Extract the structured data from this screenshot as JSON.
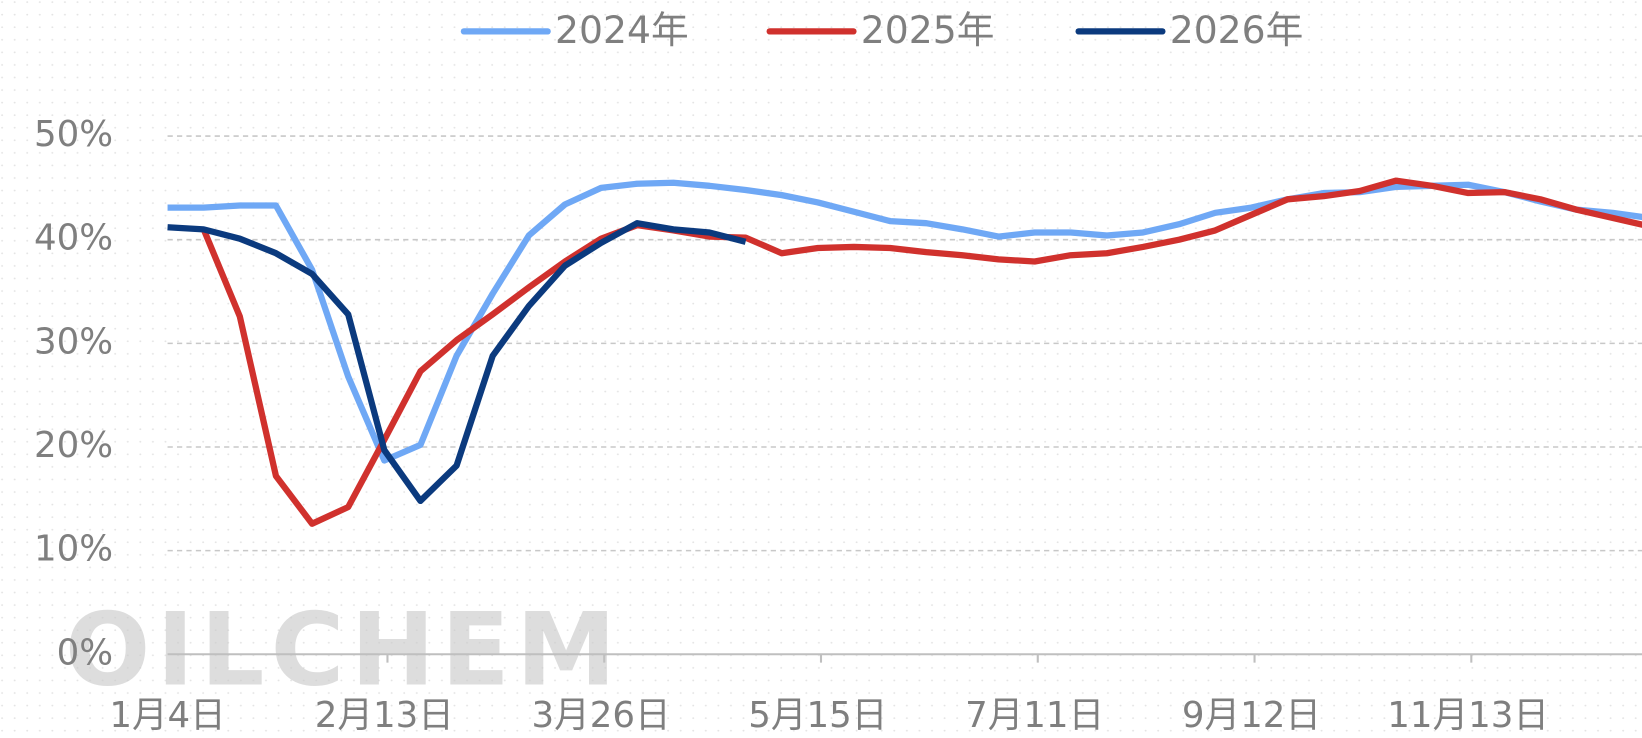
{
  "chart_data": {
    "type": "line",
    "watermark": "OILCHEM",
    "categories": [
      "1月4日",
      null,
      null,
      null,
      null,
      null,
      "2月13日",
      null,
      null,
      null,
      null,
      null,
      "3月26日",
      null,
      null,
      null,
      null,
      null,
      "5月15日",
      null,
      null,
      null,
      null,
      null,
      "7月11日",
      null,
      null,
      null,
      null,
      null,
      "9月12日",
      null,
      null,
      null,
      null,
      null,
      "11月13日",
      null,
      null,
      null,
      null,
      null
    ],
    "series": [
      {
        "name": "2024年",
        "color": "#6fa8f5",
        "values": [
          43.1,
          43.1,
          43.3,
          43.3,
          37.1,
          26.8,
          18.7,
          20.2,
          28.8,
          34.8,
          40.4,
          43.4,
          45.0,
          45.4,
          45.5,
          45.2,
          44.8,
          44.3,
          43.6,
          42.7,
          41.8,
          41.6,
          41.0,
          40.3,
          40.7,
          40.7,
          40.4,
          40.7,
          41.5,
          42.6,
          43.1,
          43.9,
          44.5,
          44.6,
          45.1,
          45.2,
          45.3,
          44.6,
          43.7,
          42.9,
          42.6,
          42.1
        ]
      },
      {
        "name": "2025年",
        "color": "#d0312d",
        "values": [
          null,
          41.0,
          32.6,
          17.2,
          12.6,
          14.2,
          20.7,
          27.3,
          30.3,
          32.8,
          35.4,
          37.9,
          40.1,
          41.4,
          40.9,
          40.3,
          40.2,
          38.7,
          39.2,
          39.3,
          39.2,
          38.8,
          38.5,
          38.1,
          37.9,
          38.5,
          38.7,
          39.3,
          40.0,
          40.9,
          42.4,
          43.9,
          44.2,
          44.7,
          45.7,
          45.2,
          44.5,
          44.6,
          43.9,
          42.9,
          42.1,
          41.3
        ]
      },
      {
        "name": "2026年",
        "color": "#0b3a7e",
        "values": [
          41.2,
          41.0,
          40.1,
          38.7,
          36.7,
          32.8,
          19.7,
          14.8,
          18.2,
          28.8,
          33.6,
          37.5,
          39.7,
          41.6,
          41.0,
          40.7,
          39.8,
          null,
          null,
          null,
          null,
          null,
          null,
          null,
          null,
          null,
          null,
          null,
          null,
          null,
          null,
          null,
          null,
          null,
          null,
          null,
          null,
          null,
          null,
          null,
          null,
          null
        ]
      }
    ],
    "ylim": [
      0,
      50
    ],
    "yticks": [
      {
        "value": 0,
        "label": "0%"
      },
      {
        "value": 10,
        "label": "10%"
      },
      {
        "value": 20,
        "label": "20%"
      },
      {
        "value": 30,
        "label": "30%"
      },
      {
        "value": 40,
        "label": "40%"
      },
      {
        "value": 50,
        "label": "50%"
      }
    ],
    "grid": true,
    "legend": "top"
  }
}
